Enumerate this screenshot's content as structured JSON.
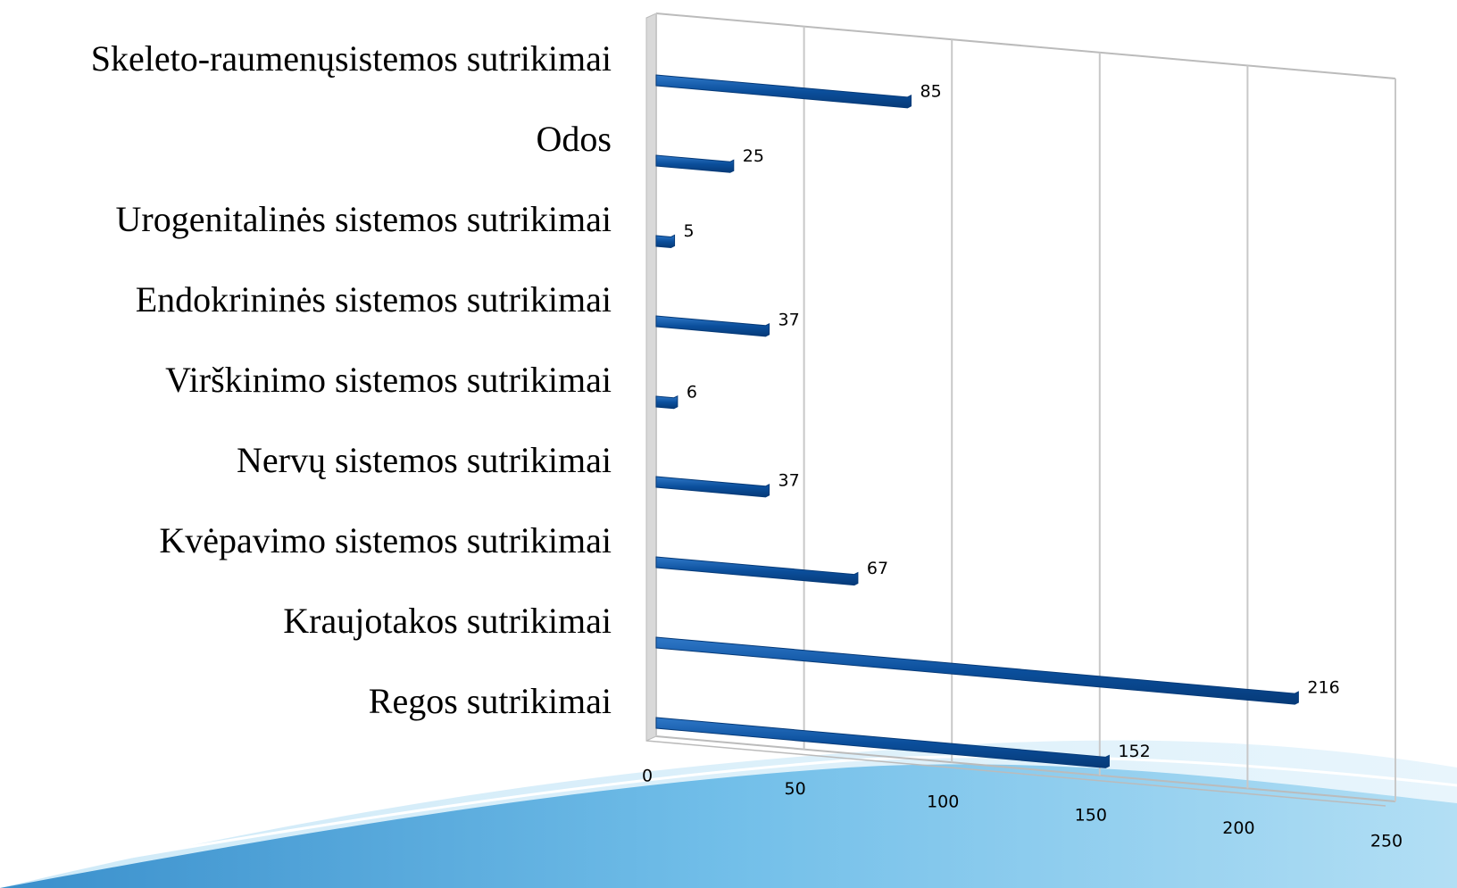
{
  "chart_data": {
    "type": "bar",
    "orientation": "horizontal",
    "categories": [
      "Skeleto-raumenųsistemos sutrikimai",
      "Odos",
      "Urogenitalinės sistemos sutrikimai",
      "Endokrininės sistemos sutrikimai",
      "Virškinimo sistemos sutrikimai",
      "Nervų sistemos sutrikimai",
      "Kvėpavimo sistemos sutrikimai",
      "Kraujotakos sutrikimai",
      "Regos sutrikimai"
    ],
    "values": [
      85,
      25,
      5,
      37,
      6,
      37,
      67,
      216,
      152
    ],
    "color": "#0b4f9c",
    "xlim": [
      0,
      250
    ],
    "xticks": [
      0,
      50,
      100,
      150,
      200,
      250
    ],
    "grid": true
  }
}
